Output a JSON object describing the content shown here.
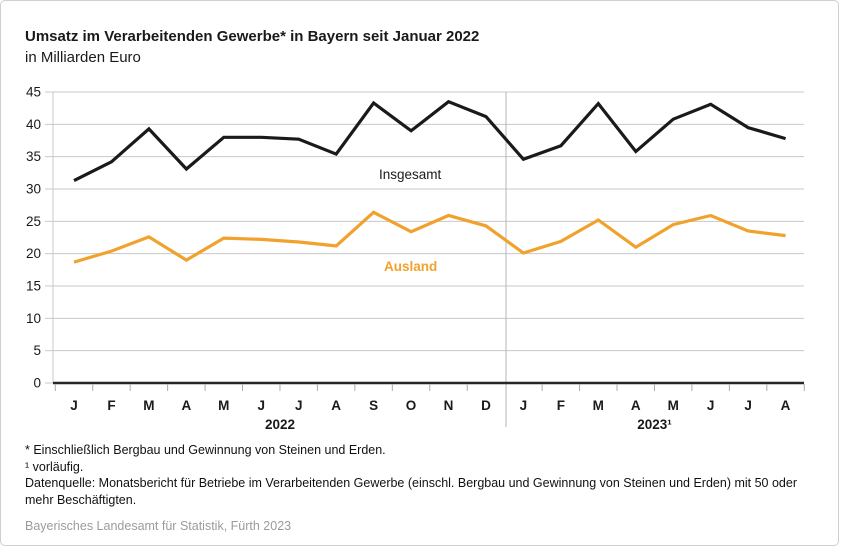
{
  "header": {
    "title": "Umsatz im Verarbeitenden Gewerbe* in Bayern seit Januar 2022",
    "subtitle": "in Milliarden Euro"
  },
  "chart_data": {
    "type": "line",
    "categories": [
      "J",
      "F",
      "M",
      "A",
      "M",
      "J",
      "J",
      "A",
      "S",
      "O",
      "N",
      "D",
      "J",
      "F",
      "M",
      "A",
      "M",
      "J",
      "J",
      "A"
    ],
    "year_groups": [
      {
        "label": "2022",
        "start": 0,
        "count": 12
      },
      {
        "label": "2023¹",
        "start": 12,
        "count": 8
      }
    ],
    "series": [
      {
        "name": "Insgesamt",
        "color": "#1a1a1a",
        "values": [
          31.3,
          34.2,
          39.3,
          33.1,
          38.0,
          38.0,
          37.7,
          35.4,
          43.3,
          39.0,
          43.5,
          41.2,
          34.6,
          36.7,
          43.2,
          35.8,
          40.8,
          43.1,
          39.5,
          37.8
        ]
      },
      {
        "name": "Ausland",
        "color": "#F0A22D",
        "values": [
          18.7,
          20.4,
          22.6,
          19.0,
          22.4,
          22.2,
          21.8,
          21.2,
          26.4,
          23.4,
          25.9,
          24.3,
          20.1,
          21.9,
          25.2,
          21.0,
          24.5,
          25.9,
          23.5,
          22.8
        ]
      }
    ],
    "ylim": [
      0,
      45
    ],
    "ytick_step": 5,
    "grid": true,
    "legend_position": "inline-labels",
    "grid_color": "#c8c8c8",
    "axis_color": "#262626"
  },
  "footnotes": [
    "* Einschließlich Bergbau und Gewinnung von Steinen und Erden.",
    "¹ vorläufig.",
    "Datenquelle: Monatsbericht für Betriebe im Verarbeitenden Gewerbe (einschl. Bergbau und Gewinnung von Steinen und Erden) mit 50 oder mehr Beschäftigten."
  ],
  "credit": "Bayerisches Landesamt für Statistik, Fürth 2023"
}
